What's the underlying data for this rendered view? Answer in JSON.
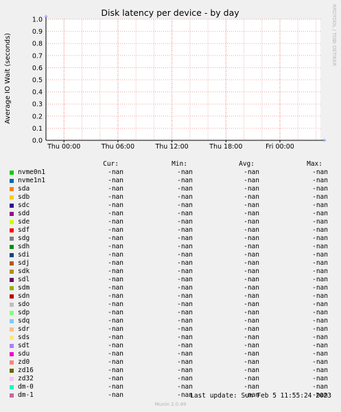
{
  "watermark": "RRDTOOL / TOBI OETIKER",
  "chart_data": {
    "type": "line",
    "title": "Disk latency per device - by day",
    "ylabel": "Average IO Wait (seconds)",
    "xlabel": "",
    "ylim": [
      0,
      1.0
    ],
    "yticks": [
      "0.0",
      "0.1",
      "0.2",
      "0.3",
      "0.4",
      "0.5",
      "0.6",
      "0.7",
      "0.8",
      "0.9",
      "1.0"
    ],
    "xticks": [
      "Thu 00:00",
      "Thu 06:00",
      "Thu 12:00",
      "Thu 18:00",
      "Fri 00:00"
    ],
    "grid": true,
    "series": []
  },
  "legend": {
    "headers": [
      "Cur:",
      "Min:",
      "Avg:",
      "Max:"
    ],
    "items": [
      {
        "name": "nvme0n1",
        "color": "#00cc00",
        "cur": "-nan",
        "min": "-nan",
        "avg": "-nan",
        "max": "-nan"
      },
      {
        "name": "nvme1n1",
        "color": "#0066b3",
        "cur": "-nan",
        "min": "-nan",
        "avg": "-nan",
        "max": "-nan"
      },
      {
        "name": "sda",
        "color": "#ff8000",
        "cur": "-nan",
        "min": "-nan",
        "avg": "-nan",
        "max": "-nan"
      },
      {
        "name": "sdb",
        "color": "#ffcc00",
        "cur": "-nan",
        "min": "-nan",
        "avg": "-nan",
        "max": "-nan"
      },
      {
        "name": "sdc",
        "color": "#330099",
        "cur": "-nan",
        "min": "-nan",
        "avg": "-nan",
        "max": "-nan"
      },
      {
        "name": "sdd",
        "color": "#990099",
        "cur": "-nan",
        "min": "-nan",
        "avg": "-nan",
        "max": "-nan"
      },
      {
        "name": "sde",
        "color": "#ccff00",
        "cur": "-nan",
        "min": "-nan",
        "avg": "-nan",
        "max": "-nan"
      },
      {
        "name": "sdf",
        "color": "#ff0000",
        "cur": "-nan",
        "min": "-nan",
        "avg": "-nan",
        "max": "-nan"
      },
      {
        "name": "sdg",
        "color": "#808080",
        "cur": "-nan",
        "min": "-nan",
        "avg": "-nan",
        "max": "-nan"
      },
      {
        "name": "sdh",
        "color": "#008f00",
        "cur": "-nan",
        "min": "-nan",
        "avg": "-nan",
        "max": "-nan"
      },
      {
        "name": "sdi",
        "color": "#00487d",
        "cur": "-nan",
        "min": "-nan",
        "avg": "-nan",
        "max": "-nan"
      },
      {
        "name": "sdj",
        "color": "#b35a00",
        "cur": "-nan",
        "min": "-nan",
        "avg": "-nan",
        "max": "-nan"
      },
      {
        "name": "sdk",
        "color": "#b38f00",
        "cur": "-nan",
        "min": "-nan",
        "avg": "-nan",
        "max": "-nan"
      },
      {
        "name": "sdl",
        "color": "#6b006b",
        "cur": "-nan",
        "min": "-nan",
        "avg": "-nan",
        "max": "-nan"
      },
      {
        "name": "sdm",
        "color": "#8fb300",
        "cur": "-nan",
        "min": "-nan",
        "avg": "-nan",
        "max": "-nan"
      },
      {
        "name": "sdn",
        "color": "#b30000",
        "cur": "-nan",
        "min": "-nan",
        "avg": "-nan",
        "max": "-nan"
      },
      {
        "name": "sdo",
        "color": "#bebebe",
        "cur": "-nan",
        "min": "-nan",
        "avg": "-nan",
        "max": "-nan"
      },
      {
        "name": "sdp",
        "color": "#80ff80",
        "cur": "-nan",
        "min": "-nan",
        "avg": "-nan",
        "max": "-nan"
      },
      {
        "name": "sdq",
        "color": "#80c9ff",
        "cur": "-nan",
        "min": "-nan",
        "avg": "-nan",
        "max": "-nan"
      },
      {
        "name": "sdr",
        "color": "#ffc080",
        "cur": "-nan",
        "min": "-nan",
        "avg": "-nan",
        "max": "-nan"
      },
      {
        "name": "sds",
        "color": "#ffe680",
        "cur": "-nan",
        "min": "-nan",
        "avg": "-nan",
        "max": "-nan"
      },
      {
        "name": "sdt",
        "color": "#aa80ff",
        "cur": "-nan",
        "min": "-nan",
        "avg": "-nan",
        "max": "-nan"
      },
      {
        "name": "sdu",
        "color": "#ee00cc",
        "cur": "-nan",
        "min": "-nan",
        "avg": "-nan",
        "max": "-nan"
      },
      {
        "name": "zd0",
        "color": "#ff8080",
        "cur": "-nan",
        "min": "-nan",
        "avg": "-nan",
        "max": "-nan"
      },
      {
        "name": "zd16",
        "color": "#666600",
        "cur": "-nan",
        "min": "-nan",
        "avg": "-nan",
        "max": "-nan"
      },
      {
        "name": "zd32",
        "color": "#ffbfff",
        "cur": "-nan",
        "min": "-nan",
        "avg": "-nan",
        "max": "-nan"
      },
      {
        "name": "dm-0",
        "color": "#00ffcc",
        "cur": "-nan",
        "min": "-nan",
        "avg": "-nan",
        "max": "-nan"
      },
      {
        "name": "dm-1",
        "color": "#cc6699",
        "cur": "-nan",
        "min": "-nan",
        "avg": "-nan",
        "max": "-nan"
      }
    ]
  },
  "last_update": "Last update:  Sun Feb  5 11:55:24 2023",
  "munin_version": "Munin 2.0.49"
}
